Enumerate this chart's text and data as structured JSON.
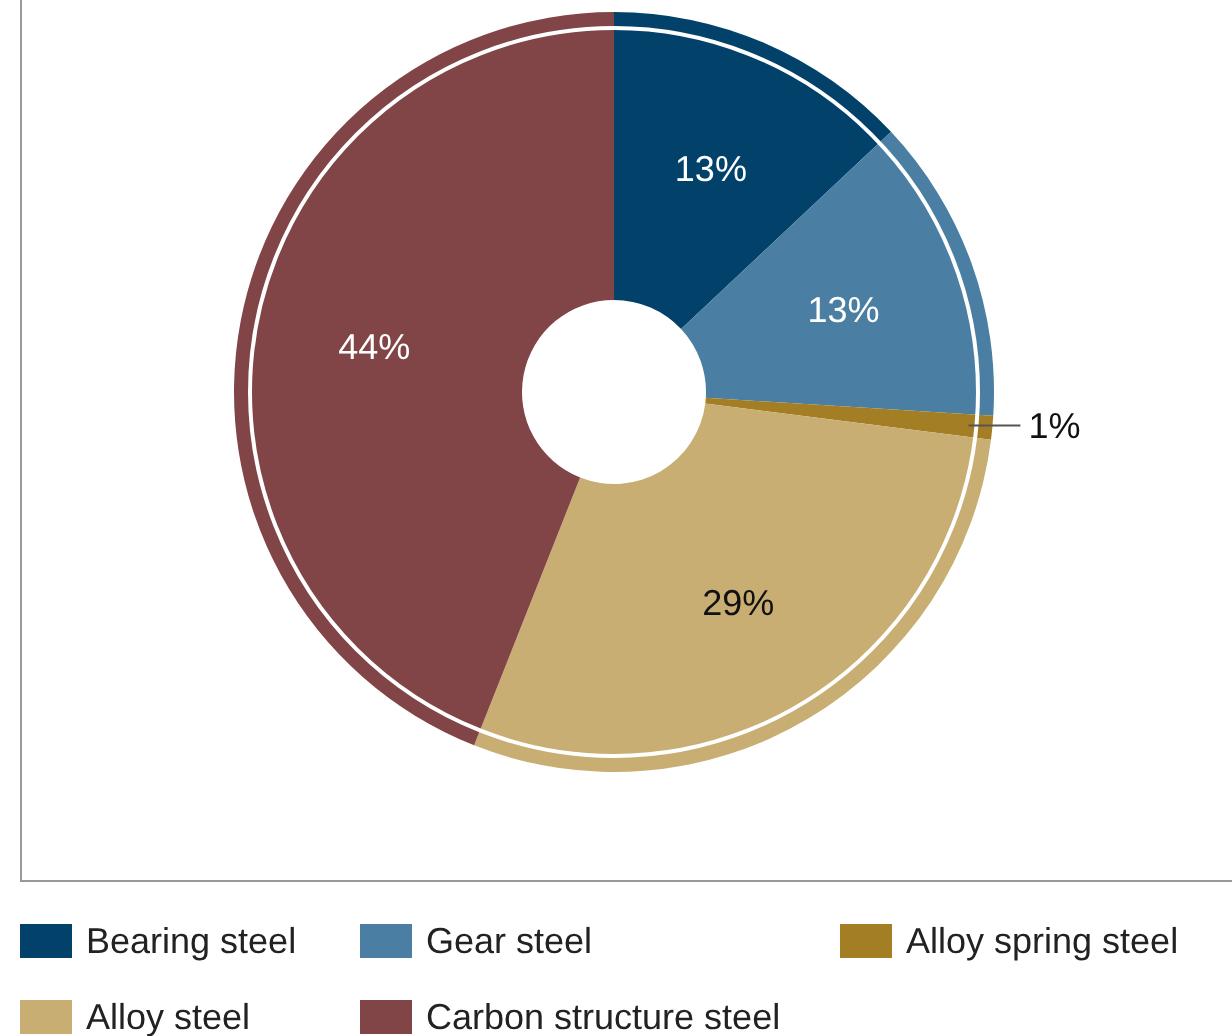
{
  "chart_data": {
    "type": "donut",
    "categories": [
      "Bearing steel",
      "Gear steel",
      "Alloy spring steel",
      "Alloy steel",
      "Carbon structure steel"
    ],
    "values": [
      13,
      13,
      1,
      29,
      44
    ],
    "colors": [
      "#02426a",
      "#4a7fa3",
      "#a47e25",
      "#c8ae72",
      "#814447"
    ],
    "value_labels": [
      "13%",
      "13%",
      "1%",
      "29%",
      "44%"
    ],
    "legend": "bottom"
  }
}
